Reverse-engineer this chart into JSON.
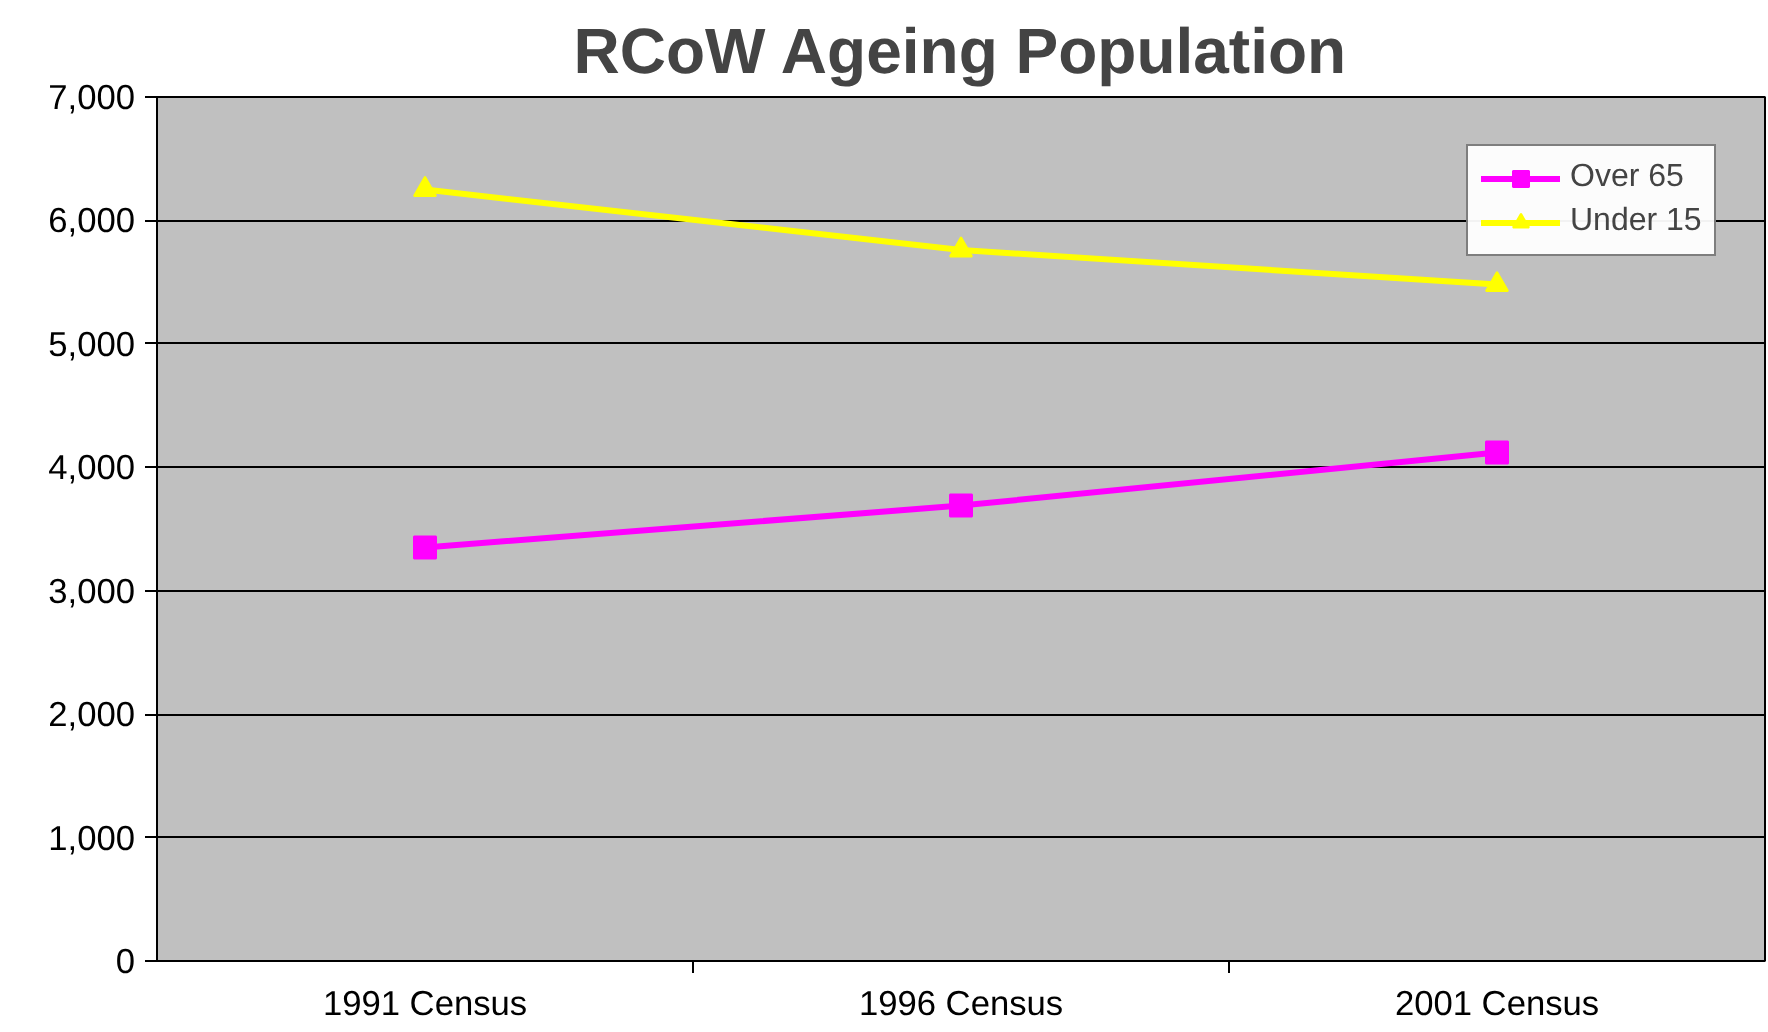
{
  "chart_data": {
    "type": "line",
    "title": "RCoW Ageing Population",
    "categories": [
      "1991 Census",
      "1996 Census",
      "2001 Census"
    ],
    "series": [
      {
        "name": "Over 65",
        "color": "#ff00ff",
        "marker": "square",
        "values": [
          3350,
          3690,
          4120
        ]
      },
      {
        "name": "Under 15",
        "color": "#ffff00",
        "marker": "triangle",
        "values": [
          6250,
          5760,
          5480
        ]
      }
    ],
    "ylim": [
      0,
      7000
    ],
    "yticks": [
      {
        "value": 0,
        "label": "0"
      },
      {
        "value": 1000,
        "label": "1,000"
      },
      {
        "value": 2000,
        "label": "2,000"
      },
      {
        "value": 3000,
        "label": "3,000"
      },
      {
        "value": 4000,
        "label": "4,000"
      },
      {
        "value": 5000,
        "label": "5,000"
      },
      {
        "value": 6000,
        "label": "6,000"
      },
      {
        "value": 7000,
        "label": "7,000"
      }
    ],
    "grid": "y",
    "legend": "top right",
    "line_style": "solid"
  }
}
